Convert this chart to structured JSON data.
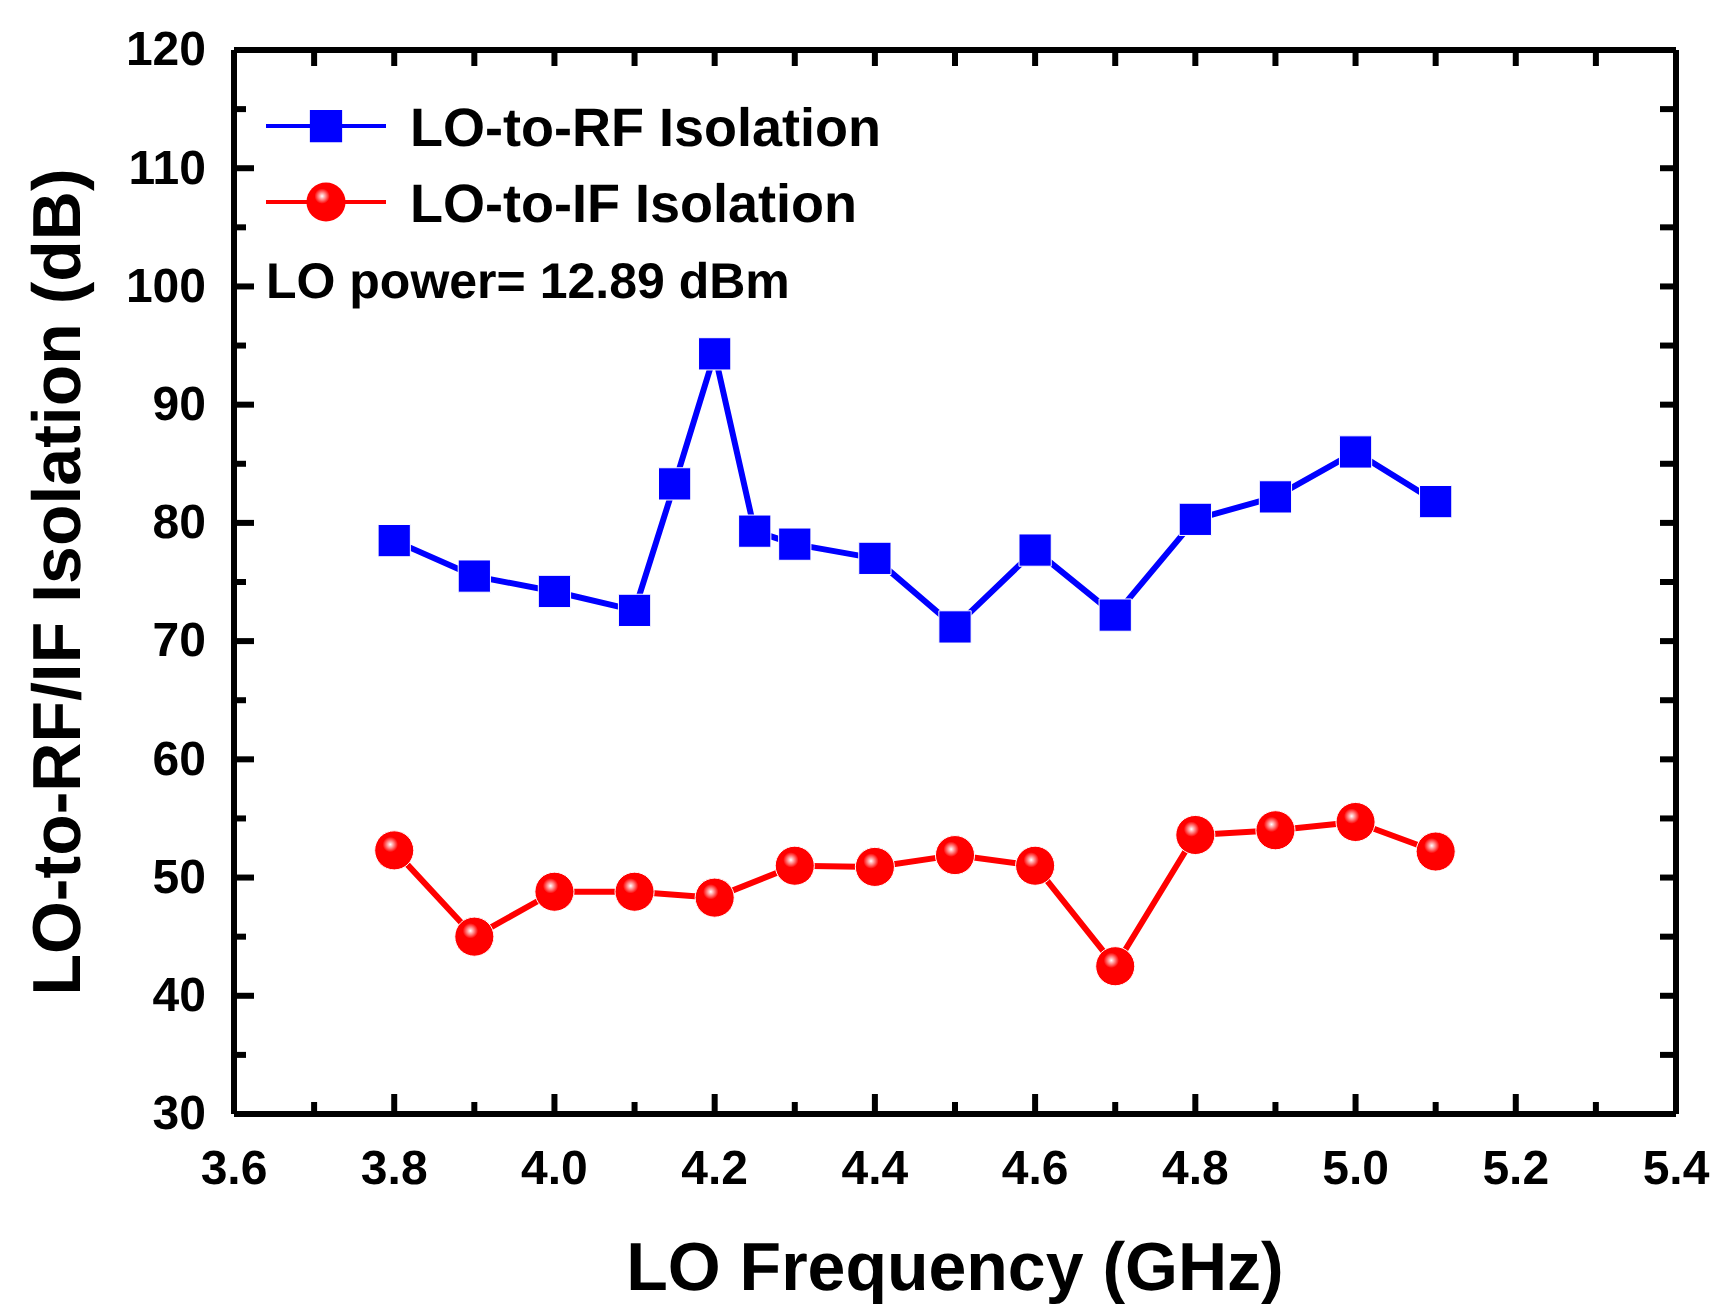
{
  "chart_data": {
    "type": "line",
    "xlabel": "LO Frequency (GHz)",
    "ylabel": "LO-to-RF/IF Isolation (dB)",
    "xlim": [
      3.6,
      5.4
    ],
    "xticks": [
      3.6,
      3.8,
      {
        "value": 4,
        "label": "4.0"
      },
      4.2,
      4.4,
      4.6,
      4.8,
      {
        "value": 5,
        "label": "5.0"
      },
      5.2,
      5.4
    ],
    "ylim": [
      30,
      120
    ],
    "yticks": [
      30,
      40,
      50,
      60,
      70,
      80,
      90,
      100,
      110,
      120
    ],
    "legend": "top left",
    "grid": false,
    "line_style": "solid",
    "annotations": [
      "LO power= 12.89 dBm"
    ],
    "series": [
      {
        "name": "LO-to-RF Isolation",
        "color": "#0000ff",
        "marker": "square",
        "x": [
          3.8,
          3.9,
          4.0,
          4.1,
          4.15,
          4.2,
          4.25,
          4.3,
          4.4,
          4.5,
          4.6,
          4.7,
          4.8,
          4.9,
          5.0,
          5.1
        ],
        "values": [
          78.5,
          75.5,
          74.2,
          72.6,
          83.3,
          94.3,
          79.3,
          78.2,
          77,
          71.2,
          77.7,
          72.2,
          80.3,
          82.2,
          86,
          81.8
        ]
      },
      {
        "name": "LO-to-IF Isolation",
        "color": "#ff0000",
        "marker": "circle",
        "x": [
          3.8,
          3.9,
          4.0,
          4.1,
          4.2,
          4.3,
          4.4,
          4.5,
          4.6,
          4.7,
          4.8,
          4.9,
          5.0,
          5.1
        ],
        "values": [
          52.3,
          45,
          48.8,
          48.8,
          48.3,
          51,
          50.9,
          51.9,
          51,
          42.5,
          53.6,
          54,
          54.7,
          52.2
        ]
      }
    ]
  }
}
